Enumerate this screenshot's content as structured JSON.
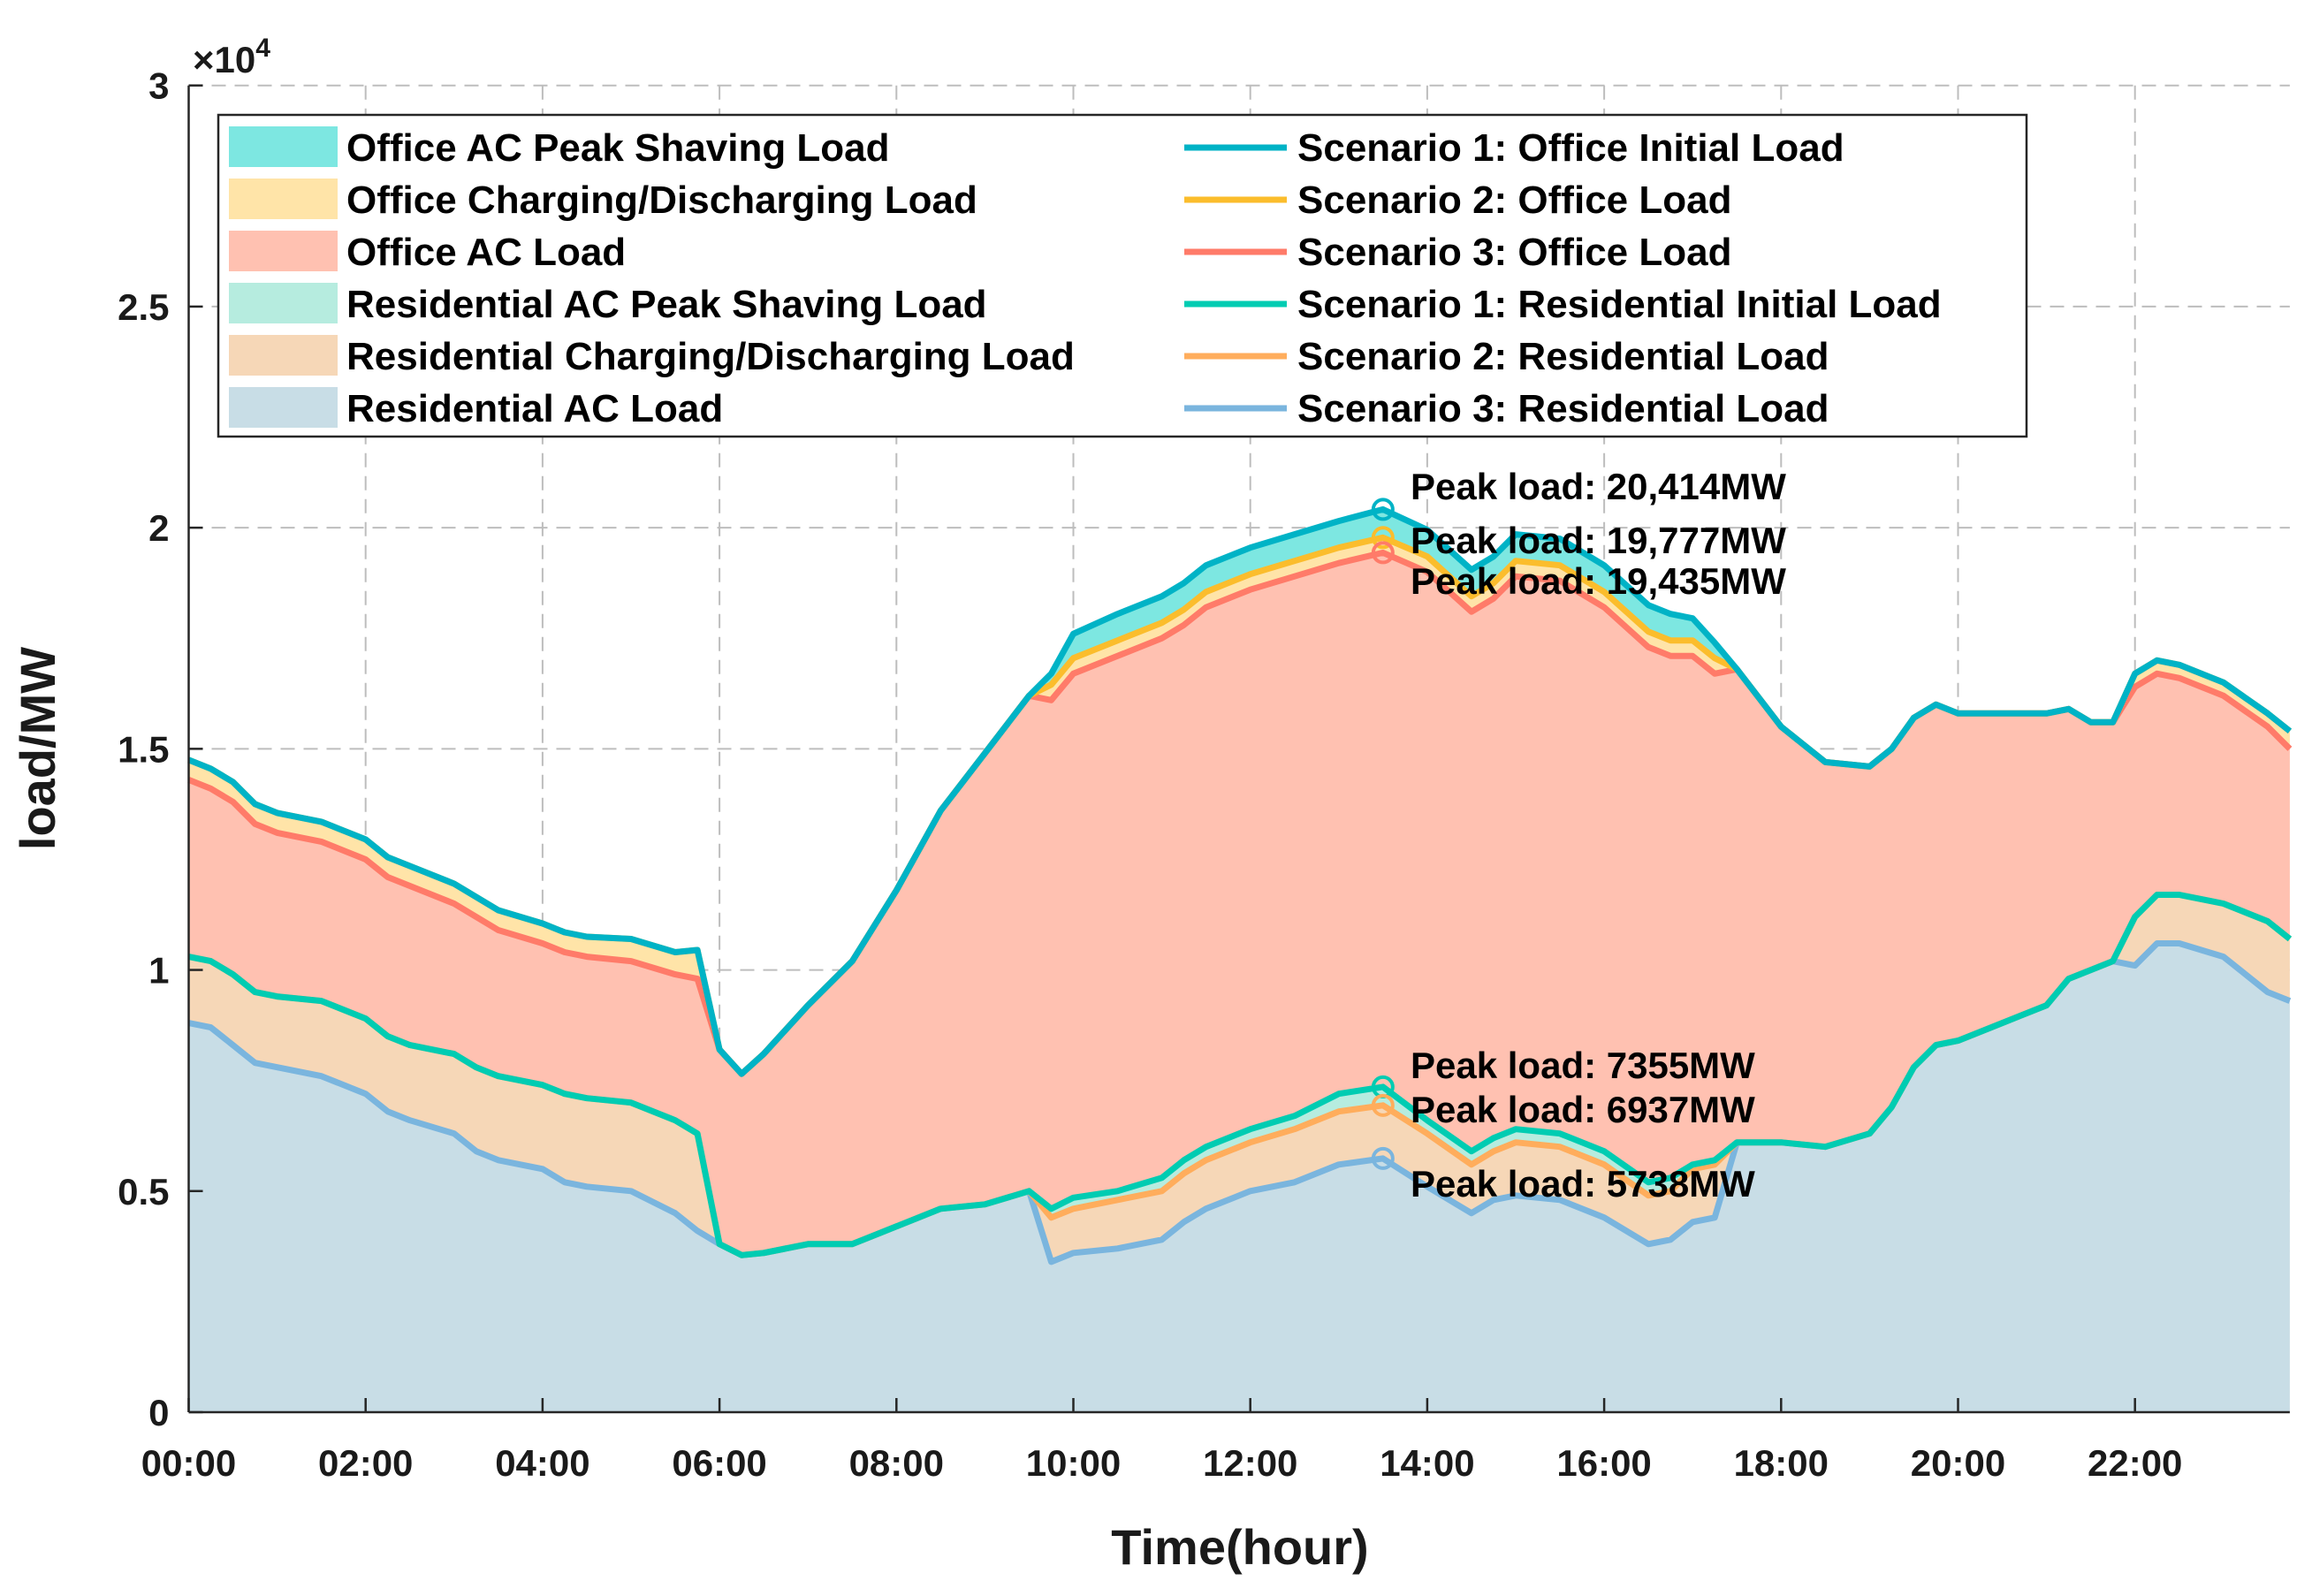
{
  "chart_data": {
    "type": "area",
    "title": "",
    "xlabel": "Time(hour)",
    "ylabel": "load/MW",
    "y_multiplier": "×10",
    "y_multiplier_exp": "4",
    "ylim": [
      0,
      30000
    ],
    "xlim": [
      "00:00",
      "23:45"
    ],
    "grid": true,
    "legend_placement": "top",
    "x_ticks": [
      "00:00",
      "02:00",
      "04:00",
      "06:00",
      "08:00",
      "10:00",
      "12:00",
      "14:00",
      "16:00",
      "18:00",
      "20:00",
      "22:00"
    ],
    "y_ticks": [
      {
        "value": 0,
        "label": "0"
      },
      {
        "value": 5000,
        "label": "0.5"
      },
      {
        "value": 10000,
        "label": "1"
      },
      {
        "value": 15000,
        "label": "1.5"
      },
      {
        "value": 20000,
        "label": "2"
      },
      {
        "value": 25000,
        "label": "2.5"
      },
      {
        "value": 30000,
        "label": "3"
      }
    ],
    "x": [
      "00:00",
      "00:15",
      "00:30",
      "00:45",
      "01:00",
      "01:30",
      "02:00",
      "02:15",
      "02:30",
      "03:00",
      "03:15",
      "03:30",
      "04:00",
      "04:15",
      "04:30",
      "05:00",
      "05:30",
      "05:45",
      "06:00",
      "06:15",
      "06:30",
      "07:00",
      "07:30",
      "08:00",
      "08:30",
      "09:00",
      "09:30",
      "09:45",
      "10:00",
      "10:30",
      "11:00",
      "11:15",
      "11:30",
      "12:00",
      "12:30",
      "13:00",
      "13:30",
      "14:00",
      "14:30",
      "14:45",
      "15:00",
      "15:30",
      "16:00",
      "16:30",
      "16:45",
      "17:00",
      "17:15",
      "17:30",
      "18:00",
      "18:30",
      "19:00",
      "19:15",
      "19:30",
      "19:45",
      "20:00",
      "20:30",
      "21:00",
      "21:15",
      "21:30",
      "21:45",
      "22:00",
      "22:15",
      "22:30",
      "23:00",
      "23:30",
      "23:45"
    ],
    "lines": [
      {
        "name": "Scenario 1: Office Initial Load",
        "key": "off1",
        "color": "#00b3c6",
        "values": [
          14750,
          14550,
          14250,
          13750,
          13550,
          13350,
          12950,
          12550,
          12350,
          11950,
          11650,
          11350,
          11050,
          10850,
          10750,
          10700,
          10400,
          10450,
          8200,
          7650,
          8100,
          9200,
          10200,
          11800,
          13600,
          14900,
          16200,
          16700,
          17600,
          18050,
          18450,
          18750,
          19150,
          19550,
          19850,
          20150,
          20414,
          19950,
          19050,
          19350,
          19850,
          19750,
          19150,
          18250,
          18050,
          17950,
          17400,
          16800,
          15500,
          14700,
          14600,
          15000,
          15700,
          16000,
          15800,
          15800,
          15800,
          15900,
          15600,
          15600,
          16700,
          17000,
          16900,
          16500,
          15800,
          15400
        ]
      },
      {
        "name": "Scenario 2: Office Load",
        "key": "off2",
        "color": "#fbbd2c",
        "values": [
          14750,
          14550,
          14250,
          13750,
          13550,
          13350,
          12950,
          12550,
          12350,
          11950,
          11650,
          11350,
          11050,
          10850,
          10750,
          10700,
          10400,
          10450,
          8200,
          7650,
          8100,
          9200,
          10200,
          11800,
          13600,
          14900,
          16200,
          16450,
          17050,
          17450,
          17850,
          18150,
          18550,
          18950,
          19250,
          19550,
          19777,
          19350,
          18450,
          18750,
          19250,
          19150,
          18550,
          17650,
          17450,
          17450,
          17050,
          16800,
          15500,
          14700,
          14600,
          15000,
          15700,
          16000,
          15800,
          15800,
          15800,
          15900,
          15600,
          15600,
          16700,
          17000,
          16900,
          16500,
          15800,
          15400
        ]
      },
      {
        "name": "Scenario 3: Office Load",
        "key": "off3",
        "color": "#ff7b69",
        "values": [
          14300,
          14100,
          13800,
          13300,
          13100,
          12900,
          12500,
          12100,
          11900,
          11500,
          11200,
          10900,
          10600,
          10400,
          10300,
          10200,
          9900,
          9800,
          8200,
          7650,
          8100,
          9200,
          10200,
          11800,
          13600,
          14900,
          16200,
          16100,
          16700,
          17100,
          17500,
          17800,
          18200,
          18600,
          18900,
          19200,
          19435,
          19000,
          18100,
          18400,
          18900,
          18800,
          18200,
          17300,
          17100,
          17100,
          16700,
          16800,
          15500,
          14700,
          14600,
          15000,
          15700,
          16000,
          15800,
          15800,
          15800,
          15900,
          15600,
          15600,
          16400,
          16700,
          16600,
          16200,
          15500,
          15000
        ]
      },
      {
        "name": "Scenario 1: Residential Initial Load",
        "key": "res1",
        "color": "#00ccb2",
        "values": [
          10300,
          10200,
          9900,
          9500,
          9400,
          9300,
          8900,
          8500,
          8300,
          8100,
          7800,
          7600,
          7400,
          7200,
          7100,
          7000,
          6600,
          6300,
          3800,
          3550,
          3600,
          3800,
          3800,
          4200,
          4600,
          4700,
          5000,
          4600,
          4850,
          5000,
          5300,
          5700,
          6000,
          6400,
          6700,
          7200,
          7355,
          6600,
          5900,
          6200,
          6400,
          6300,
          5900,
          5200,
          5300,
          5600,
          5700,
          6100,
          6100,
          6000,
          6300,
          6900,
          7800,
          8300,
          8400,
          8800,
          9200,
          9800,
          10000,
          10200,
          11200,
          11700,
          11700,
          11500,
          11100,
          10700
        ]
      },
      {
        "name": "Scenario 2: Residential Load",
        "key": "res2",
        "color": "#ffad5c",
        "values": [
          10300,
          10200,
          9900,
          9500,
          9400,
          9300,
          8900,
          8500,
          8300,
          8100,
          7800,
          7600,
          7400,
          7200,
          7100,
          7000,
          6600,
          6300,
          3800,
          3550,
          3600,
          3800,
          3800,
          4200,
          4600,
          4700,
          5000,
          4400,
          4600,
          4800,
          5000,
          5400,
          5700,
          6100,
          6400,
          6800,
          6937,
          6300,
          5600,
          5900,
          6100,
          6000,
          5600,
          4900,
          5000,
          5500,
          5600,
          6100,
          6100,
          6000,
          6300,
          6900,
          7800,
          8300,
          8400,
          8800,
          9200,
          9800,
          10000,
          10200,
          11200,
          11700,
          11700,
          11500,
          11100,
          10700
        ]
      },
      {
        "name": "Scenario 3: Residential Load",
        "key": "res3",
        "color": "#7ab5de",
        "values": [
          8800,
          8700,
          8300,
          7900,
          7800,
          7600,
          7200,
          6800,
          6600,
          6300,
          5900,
          5700,
          5500,
          5200,
          5100,
          5000,
          4500,
          4100,
          3800,
          3550,
          3600,
          3800,
          3800,
          4200,
          4600,
          4700,
          5000,
          3400,
          3600,
          3700,
          3900,
          4300,
          4600,
          5000,
          5200,
          5600,
          5738,
          5100,
          4500,
          4800,
          4900,
          4800,
          4400,
          3800,
          3900,
          4300,
          4400,
          6100,
          6100,
          6000,
          6300,
          6900,
          7800,
          8300,
          8400,
          8800,
          9200,
          9800,
          10000,
          10200,
          10100,
          10600,
          10600,
          10300,
          9500,
          9300
        ]
      }
    ],
    "areas": [
      {
        "name": "Office AC Peak Shaving Load",
        "lower": "off2",
        "upper": "off1",
        "color": "#7de7e1"
      },
      {
        "name": "Office Charging/Discharging Load",
        "lower": "off3",
        "upper": "off2",
        "color": "#ffe4a8"
      },
      {
        "name": "Office AC Load",
        "lower": "res1",
        "upper": "off3",
        "color": "#ffc1b1"
      },
      {
        "name": "Residential AC Peak Shaving Load",
        "lower": "res2",
        "upper": "res1",
        "color": "#b6ecdf"
      },
      {
        "name": "Residential Charging/Discharging Load",
        "lower": "res3",
        "upper": "res2",
        "color": "#f6d7b7"
      },
      {
        "name": "Residential AC Load",
        "lower": null,
        "upper": "res3",
        "color": "#c8dde6"
      }
    ],
    "annotations": [
      {
        "text": "Peak load: 20,414MW",
        "x": "13:30",
        "y": 20414,
        "line": "off1"
      },
      {
        "text": "Peak load: 19,777MW",
        "x": "13:30",
        "y": 19777,
        "line": "off2"
      },
      {
        "text": "Peak load: 19,435MW",
        "x": "13:30",
        "y": 19435,
        "line": "off3"
      },
      {
        "text": "Peak load: 7355MW",
        "x": "13:30",
        "y": 7355,
        "line": "res1"
      },
      {
        "text": "Peak load: 6937MW",
        "x": "13:30",
        "y": 6937,
        "line": "res2"
      },
      {
        "text": "Peak load: 5738MW",
        "x": "13:30",
        "y": 5738,
        "line": "res3"
      }
    ]
  }
}
